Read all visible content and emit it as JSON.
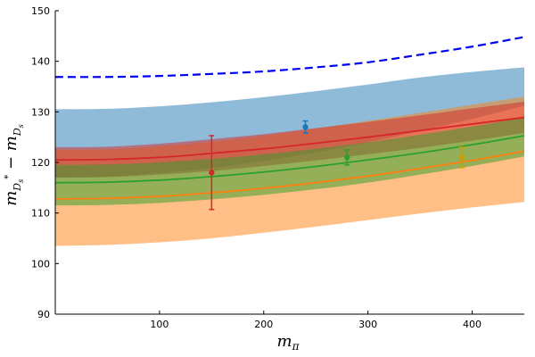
{
  "chart_data": {
    "type": "line",
    "title": "",
    "xlabel": "m_π",
    "ylabel": "m_{D_s*} − m_{D_s}",
    "xlim": [
      0,
      450
    ],
    "ylim": [
      90,
      150
    ],
    "xticks": [
      100,
      200,
      300,
      400
    ],
    "yticks": [
      90,
      100,
      110,
      120,
      130,
      140,
      150
    ],
    "grid": false,
    "legend": "none",
    "x": [
      0,
      50,
      100,
      150,
      200,
      250,
      300,
      350,
      400,
      450
    ],
    "bands": [
      {
        "color": "#1f77b4",
        "opacity": 0.5,
        "lower": [
          117.0,
          117.2,
          117.9,
          118.9,
          120.3,
          122.0,
          124.0,
          126.2,
          128.6,
          131.2
        ],
        "upper": [
          130.5,
          130.6,
          131.1,
          131.9,
          132.9,
          134.1,
          135.4,
          136.8,
          137.9,
          138.8
        ]
      },
      {
        "color": "#ff7f0e",
        "opacity": 0.5,
        "lower": [
          103.5,
          103.7,
          104.2,
          105.0,
          106.1,
          107.3,
          108.6,
          109.9,
          111.1,
          112.2
        ],
        "upper": [
          122.5,
          122.6,
          123.2,
          124.1,
          125.3,
          126.7,
          128.2,
          129.8,
          131.4,
          133.0
        ]
      },
      {
        "color": "#d62728",
        "opacity": 0.5,
        "lower": [
          117.0,
          117.1,
          117.6,
          118.3,
          119.3,
          120.4,
          121.6,
          122.9,
          124.3,
          125.8
        ],
        "upper": [
          123.0,
          123.1,
          123.7,
          124.6,
          125.6,
          126.8,
          128.0,
          129.3,
          130.7,
          132.0
        ]
      },
      {
        "color": "#2ca02c",
        "opacity": 0.5,
        "lower": [
          111.5,
          111.6,
          112.0,
          112.7,
          113.6,
          114.7,
          116.0,
          117.6,
          119.3,
          121.2
        ],
        "upper": [
          119.5,
          119.6,
          120.0,
          120.7,
          121.6,
          122.7,
          124.0,
          125.5,
          127.1,
          128.9
        ]
      }
    ],
    "series": [
      {
        "color": "#ff7f0e",
        "dash": "solid",
        "values": [
          112.8,
          112.9,
          113.3,
          114.0,
          114.9,
          116.0,
          117.3,
          118.8,
          120.4,
          122.2
        ]
      },
      {
        "color": "#d62728",
        "dash": "solid",
        "values": [
          120.5,
          120.6,
          121.0,
          121.8,
          122.7,
          123.8,
          125.0,
          126.3,
          127.6,
          128.9
        ]
      },
      {
        "color": "#2ca02c",
        "dash": "solid",
        "values": [
          116.0,
          116.1,
          116.5,
          117.2,
          118.1,
          119.2,
          120.5,
          121.9,
          123.5,
          125.3
        ]
      },
      {
        "color": "#0000ee",
        "dash": "dashed",
        "values": [
          136.9,
          136.9,
          137.1,
          137.5,
          138.0,
          138.8,
          139.8,
          141.3,
          142.9,
          144.8
        ]
      }
    ],
    "points": [
      {
        "x": 150,
        "y": 118.0,
        "err": 7.3,
        "color": "#d62728"
      },
      {
        "x": 240,
        "y": 127.0,
        "err": 1.2,
        "color": "#1f77b4"
      },
      {
        "x": 280,
        "y": 121.0,
        "err": 1.5,
        "color": "#2ca02c"
      },
      {
        "x": 390,
        "y": 121.0,
        "err": 2.0,
        "color": "#c8a000"
      }
    ]
  }
}
